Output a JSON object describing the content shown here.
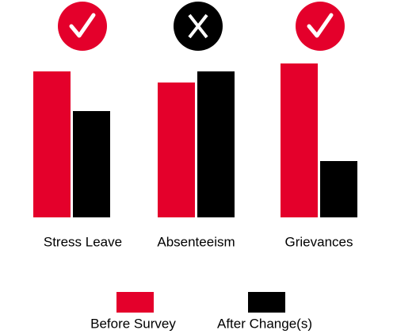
{
  "chart_data": {
    "type": "bar",
    "categories": [
      "Stress Leave",
      "Absenteeism",
      "Grievances"
    ],
    "series": [
      {
        "name": "Before Survey",
        "color": "#e4002b",
        "values": [
          184,
          170,
          194
        ]
      },
      {
        "name": "After Change(s)",
        "color": "#000000",
        "values": [
          134,
          184,
          71
        ]
      }
    ],
    "ylim": [
      0,
      200
    ]
  }
}
